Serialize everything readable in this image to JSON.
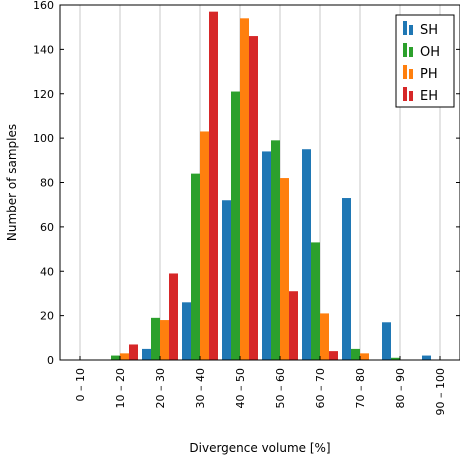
{
  "chart_data": {
    "type": "bar",
    "xlabel": "Divergence volume [%]",
    "ylabel": "Number of samples",
    "categories": [
      "0 – 10",
      "10 – 20",
      "20 – 30",
      "30 – 40",
      "40 – 50",
      "50 – 60",
      "60 – 70",
      "70 – 80",
      "80 – 90",
      "90 – 100"
    ],
    "ylim": [
      0,
      160
    ],
    "yticks": [
      0,
      20,
      40,
      60,
      80,
      100,
      120,
      140,
      160
    ],
    "grid": "vertical",
    "legend_position": "top-right",
    "series": [
      {
        "name": "SH",
        "color": "#1f77b4",
        "values": [
          0,
          0,
          5,
          26,
          72,
          94,
          95,
          73,
          17,
          2
        ]
      },
      {
        "name": "OH",
        "color": "#2ca02c",
        "values": [
          0,
          2,
          19,
          84,
          121,
          99,
          53,
          5,
          1,
          0
        ]
      },
      {
        "name": "PH",
        "color": "#ff7f0e",
        "values": [
          0,
          3,
          18,
          103,
          154,
          82,
          21,
          3,
          0,
          0
        ]
      },
      {
        "name": "EH",
        "color": "#d62728",
        "values": [
          0,
          7,
          39,
          157,
          146,
          31,
          4,
          0,
          0,
          0
        ]
      }
    ]
  }
}
